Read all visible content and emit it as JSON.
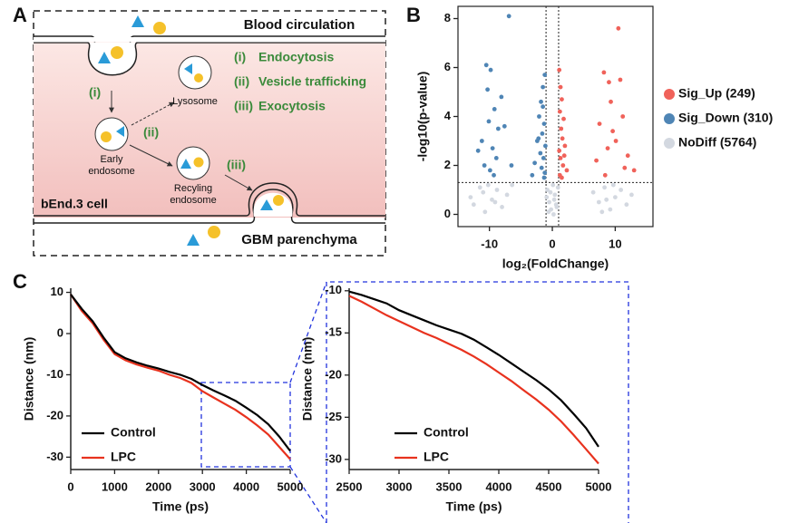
{
  "panel_labels": [
    "A",
    "B",
    "C"
  ],
  "diagram": {
    "top_label": "Blood circulation",
    "bottom_label": "GBM parenchyma",
    "cell_label": "bEnd.3 cell",
    "arrow_labels": [
      "(i)",
      "(ii)",
      "(iii)"
    ],
    "vesicles": [
      {
        "lines": [
          "Lysosome"
        ]
      },
      {
        "lines": [
          "Early",
          "endosome"
        ]
      },
      {
        "lines": [
          "Recyling",
          "endosome"
        ]
      }
    ],
    "legend": [
      {
        "num": "(i)",
        "text": "Endocytosis"
      },
      {
        "num": "(ii)",
        "text": "Vesicle trafficking"
      },
      {
        "num": "(iii)",
        "text": "Exocytosis"
      }
    ]
  },
  "chart_data": [
    {
      "type": "scatter",
      "x_label": "log₂(FoldChange)",
      "y_label": "-log10(p-value)",
      "xlim": [
        -15,
        16
      ],
      "ylim": [
        -0.5,
        8.5
      ],
      "xticks": [
        -10,
        0,
        10
      ],
      "yticks": [
        0,
        2,
        4,
        6,
        8
      ],
      "hline": 1.3,
      "vlines": [
        -1,
        1
      ],
      "frame": true,
      "legend": "outside right",
      "series": [
        {
          "name": "Sig_Up (249)",
          "color": "#f0625a",
          "x": [
            1.1,
            1.3,
            1.5,
            1.2,
            1.8,
            1.4,
            1.6,
            2.0,
            1.1,
            1.3,
            1.7,
            2.3,
            1.2,
            1.5,
            1.9,
            10.5,
            9.0,
            8.2,
            10.8,
            11.2,
            7.5,
            9.6,
            10.1,
            8.8,
            12.0,
            7.0,
            11.5,
            9.3,
            13.0,
            8.4
          ],
          "values": [
            5.9,
            5.2,
            4.7,
            4.2,
            3.9,
            3.5,
            3.1,
            2.8,
            2.6,
            2.3,
            2.0,
            1.8,
            1.6,
            1.5,
            2.4,
            7.6,
            5.4,
            5.8,
            5.5,
            4.0,
            3.7,
            3.4,
            3.0,
            2.7,
            2.4,
            2.2,
            1.9,
            4.6,
            1.8,
            1.6
          ]
        },
        {
          "name": "Sig_Down (310)",
          "color": "#4f85b5",
          "x": [
            -10.5,
            -9.8,
            -9.2,
            -10.1,
            -8.6,
            -11.2,
            -9.5,
            -8.9,
            -10.8,
            -9.9,
            -7.6,
            -6.9,
            -11.8,
            -9.3,
            -8.1,
            -10.3,
            -6.5,
            -1.2,
            -1.5,
            -1.8,
            -2.1,
            -1.3,
            -1.6,
            -2.4,
            -1.1,
            -1.9,
            -1.4,
            -2.8,
            -1.7,
            -1.2,
            -3.2,
            -1.5,
            -2.2,
            -1.3
          ],
          "values": [
            6.1,
            5.9,
            4.3,
            3.8,
            3.5,
            3.0,
            2.7,
            2.3,
            2.0,
            1.8,
            3.6,
            8.1,
            2.6,
            1.6,
            4.8,
            5.1,
            2.0,
            5.7,
            5.2,
            4.6,
            4.0,
            3.7,
            3.3,
            3.0,
            2.8,
            2.5,
            2.3,
            2.1,
            1.9,
            1.7,
            1.6,
            4.4,
            3.1,
            1.5
          ]
        },
        {
          "name": "NoDiff (5764)",
          "color": "#d3d8e0",
          "x": [
            -12.5,
            -11.0,
            -10.2,
            -9.6,
            -8.8,
            -8.0,
            -7.2,
            -10.7,
            -9.1,
            -11.5,
            -13.0,
            -6.4,
            -0.8,
            -0.5,
            -0.2,
            0.1,
            0.4,
            0.7,
            -0.6,
            0.3,
            0.9,
            -0.3,
            0.6,
            -0.9,
            0.2,
            6.5,
            7.4,
            8.3,
            9.2,
            10.0,
            10.9,
            11.8,
            7.9,
            9.7,
            8.6,
            12.6
          ],
          "values": [
            0.4,
            0.9,
            1.2,
            0.6,
            1.0,
            0.3,
            0.8,
            0.1,
            0.5,
            1.1,
            0.7,
            1.2,
            1.0,
            0.5,
            0.2,
            1.2,
            0.8,
            0.3,
            0.1,
            0.6,
            1.1,
            0.9,
            0.4,
            0.7,
            0.0,
            0.9,
            0.5,
            1.1,
            0.2,
            0.7,
            1.0,
            0.4,
            0.1,
            1.2,
            0.6,
            0.8
          ]
        }
      ]
    },
    {
      "type": "line",
      "x_label": "Time (ps)",
      "y_label": "Distance (nm)",
      "xlim": [
        0,
        5000
      ],
      "ylim": [
        -33,
        11
      ],
      "xticks": [
        0,
        1000,
        2000,
        3000,
        4000,
        5000
      ],
      "yticks": [
        10,
        0,
        -10,
        -20,
        -30
      ],
      "legend": "lower left",
      "x": [
        0,
        250,
        500,
        750,
        1000,
        1250,
        1500,
        1750,
        2000,
        2250,
        2500,
        2750,
        3000,
        3250,
        3500,
        3750,
        4000,
        4250,
        4500,
        4750,
        5000
      ],
      "series": [
        {
          "name": "Control",
          "color": "#000000",
          "values": [
            9.5,
            6,
            3,
            -1,
            -4.5,
            -6,
            -7,
            -7.8,
            -8.5,
            -9.3,
            -10,
            -11,
            -12.5,
            -13.8,
            -15,
            -16.3,
            -18,
            -19.8,
            -22,
            -25,
            -28.5
          ]
        },
        {
          "name": "LPC",
          "color": "#e8321e",
          "values": [
            9.5,
            5.5,
            2.5,
            -1.5,
            -5,
            -6.5,
            -7.5,
            -8.3,
            -9,
            -10,
            -10.8,
            -12,
            -14,
            -15.5,
            -17,
            -18.5,
            -20.3,
            -22.3,
            -24.5,
            -27.5,
            -30.5
          ]
        }
      ]
    },
    {
      "type": "line",
      "x_label": "Time (ps)",
      "y_label": "Distance (nm)",
      "xlim": [
        2500,
        5000
      ],
      "ylim": [
        -31.2,
        -9.7
      ],
      "xticks": [
        2500,
        3000,
        3500,
        4000,
        4500,
        5000
      ],
      "yticks": [
        -10,
        -15,
        -20,
        -25,
        -30
      ],
      "legend": "lower left",
      "x": [
        2500,
        2625,
        2750,
        2875,
        3000,
        3125,
        3250,
        3375,
        3500,
        3625,
        3750,
        3875,
        4000,
        4125,
        4250,
        4375,
        4500,
        4625,
        4750,
        4875,
        5000
      ],
      "series": [
        {
          "name": "Control",
          "color": "#000000",
          "values": [
            -10.1,
            -10.5,
            -11,
            -11.5,
            -12.3,
            -12.9,
            -13.5,
            -14.1,
            -14.6,
            -15.1,
            -15.8,
            -16.7,
            -17.6,
            -18.6,
            -19.6,
            -20.6,
            -21.7,
            -23,
            -24.6,
            -26.3,
            -28.5
          ]
        },
        {
          "name": "LPC",
          "color": "#e8321e",
          "values": [
            -10.6,
            -11.3,
            -12.1,
            -12.9,
            -13.6,
            -14.3,
            -15,
            -15.6,
            -16.3,
            -17,
            -17.8,
            -18.7,
            -19.7,
            -20.7,
            -21.8,
            -22.9,
            -24.1,
            -25.5,
            -27.1,
            -28.8,
            -30.5
          ]
        }
      ]
    }
  ]
}
